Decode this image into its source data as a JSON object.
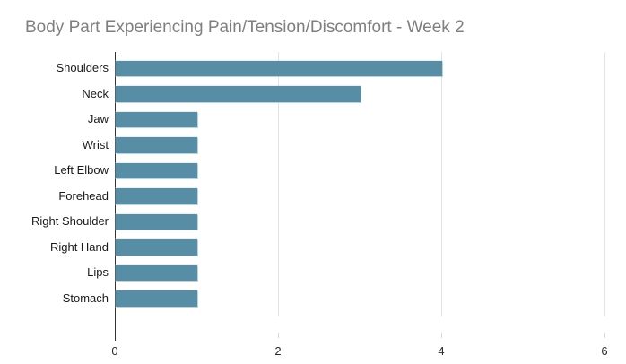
{
  "title": "Body Part Experiencing Pain/Tension/Discomfort - Week 2",
  "colors": {
    "bar": "#588da6",
    "gridline": "#e3e3e3",
    "tick": "#d6d6d6",
    "axis_line": "#333333",
    "title_text": "#7f7f7f",
    "category_text": "#1a1a1a",
    "tick_label_text": "#2a2a2a",
    "background": "#ffffff"
  },
  "chart_data": {
    "type": "bar",
    "orientation": "horizontal",
    "title": "Body Part Experiencing Pain/Tension/Discomfort - Week 2",
    "categories": [
      "Shoulders",
      "Neck",
      "Jaw",
      "Wrist",
      "Left Elbow",
      "Forehead",
      "Right Shoulder",
      "Right Hand",
      "Lips",
      "Stomach"
    ],
    "values": [
      4,
      3,
      1,
      1,
      1,
      1,
      1,
      1,
      1,
      1
    ],
    "xlabel": "",
    "ylabel": "",
    "xlim": [
      0,
      6
    ],
    "xticks": [
      0,
      2,
      4,
      6
    ],
    "grid": true,
    "legend": false
  }
}
